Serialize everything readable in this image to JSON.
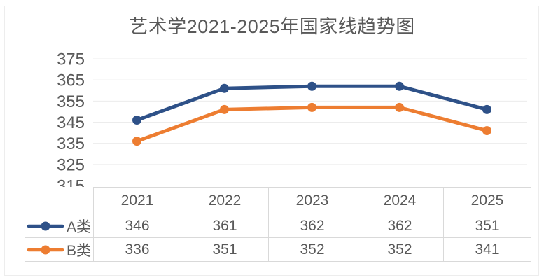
{
  "chart_data": {
    "type": "line",
    "title": "艺术学2021-2025年国家线趋势图",
    "categories": [
      "2021",
      "2022",
      "2023",
      "2024",
      "2025"
    ],
    "series": [
      {
        "name": "A类",
        "color": "#2E5188",
        "values": [
          346,
          361,
          362,
          362,
          351
        ]
      },
      {
        "name": "B类",
        "color": "#ED7D31",
        "values": [
          336,
          351,
          352,
          352,
          341
        ]
      }
    ],
    "ylim": [
      315,
      375
    ],
    "yticks": [
      375,
      365,
      355,
      345,
      335,
      325,
      315
    ],
    "grid": true,
    "legend_position": "data-table-left",
    "colors": {
      "text": "#595959",
      "gridline": "#ececec",
      "table_border": "#d9d9d9",
      "background": "#ffffff"
    }
  }
}
